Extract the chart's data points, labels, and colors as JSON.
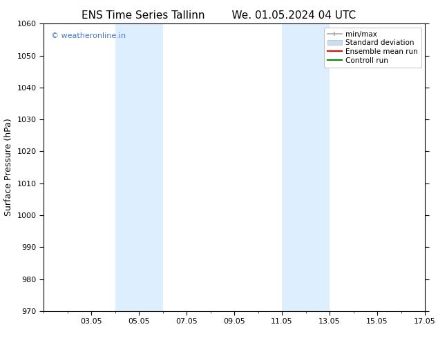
{
  "title_left": "ENS Time Series Tallinn",
  "title_right": "We. 01.05.2024 04 UTC",
  "ylabel": "Surface Pressure (hPa)",
  "ylim": [
    970,
    1060
  ],
  "yticks": [
    970,
    980,
    990,
    1000,
    1010,
    1020,
    1030,
    1040,
    1050,
    1060
  ],
  "xlim_start": 1,
  "xlim_end": 17,
  "xtick_labels": [
    "03.05",
    "05.05",
    "07.05",
    "09.05",
    "11.05",
    "13.05",
    "15.05",
    "17.05"
  ],
  "xtick_positions": [
    3,
    5,
    7,
    9,
    11,
    13,
    15,
    17
  ],
  "shaded_bands": [
    {
      "x_start": 4.0,
      "x_end": 6.0
    },
    {
      "x_start": 11.0,
      "x_end": 13.0
    }
  ],
  "shaded_color": "#ddeeff",
  "background_color": "#ffffff",
  "watermark_text": "© weatheronline.in",
  "watermark_color": "#4477cc",
  "legend_items": [
    {
      "label": "min/max",
      "color": "#aaaaaa"
    },
    {
      "label": "Standard deviation",
      "color": "#ccddf0"
    },
    {
      "label": "Ensemble mean run",
      "color": "#ff0000"
    },
    {
      "label": "Controll run",
      "color": "#008800"
    }
  ],
  "title_fontsize": 11,
  "tick_fontsize": 8,
  "ylabel_fontsize": 9,
  "watermark_fontsize": 8,
  "legend_fontsize": 7.5
}
